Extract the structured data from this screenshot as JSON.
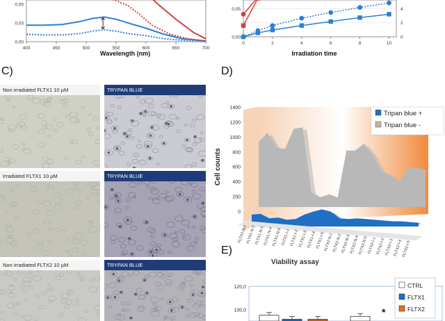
{
  "panels": {
    "c_letter": "C)",
    "d_letter": "D)",
    "e_letter": "E)"
  },
  "chart_a": {
    "type": "line",
    "xlabel": "Wavelength (nm)",
    "xticks": [
      "400",
      "450",
      "500",
      "550",
      "600",
      "650",
      "700"
    ],
    "yticks": [
      "0,00",
      "0,03",
      "0,05"
    ],
    "xlim": [
      400,
      700
    ],
    "ylim": [
      0,
      0.065
    ],
    "series": [
      {
        "style": "solid",
        "color": "#2a7fd4",
        "x": [
          400,
          430,
          460,
          490,
          510,
          530,
          550,
          570,
          600,
          630,
          660,
          700
        ],
        "values": [
          0.022,
          0.022,
          0.023,
          0.027,
          0.031,
          0.033,
          0.03,
          0.025,
          0.018,
          0.01,
          0.004,
          0.001
        ]
      },
      {
        "style": "dotted",
        "color": "#2a7fd4",
        "x": [
          400,
          430,
          460,
          490,
          510,
          530,
          550,
          570,
          600,
          630,
          660,
          700
        ],
        "values": [
          0.01,
          0.009,
          0.009,
          0.011,
          0.014,
          0.016,
          0.014,
          0.011,
          0.008,
          0.004,
          0.002,
          0.0
        ]
      },
      {
        "style": "solid",
        "color": "#d04040",
        "x": [
          420,
          440,
          460,
          475,
          490
        ],
        "values": [
          0.064,
          0.057,
          0.057,
          0.06,
          0.065
        ]
      },
      {
        "style": "dotted",
        "color": "#d04040",
        "x": [
          480,
          510,
          530,
          550,
          570,
          590,
          610,
          640,
          670,
          700
        ],
        "values": [
          0.065,
          0.062,
          0.059,
          0.055,
          0.048,
          0.036,
          0.022,
          0.01,
          0.004,
          0.001
        ]
      },
      {
        "style": "solid",
        "color": "#d04040",
        "x": [
          600,
          620,
          650,
          680,
          700
        ],
        "values": [
          0.065,
          0.05,
          0.03,
          0.012,
          0.004
        ]
      }
    ]
  },
  "chart_b": {
    "type": "line",
    "xlabel": "Irradiation time",
    "xticks": [
      "0",
      "2",
      "4",
      "6",
      "8",
      "10"
    ],
    "yticks_left": [
      "0,00",
      "0,05"
    ],
    "yticks_right": [
      "0",
      "2",
      "4"
    ],
    "xlim": [
      0,
      10.5
    ],
    "series": [
      {
        "style": "solid",
        "color": "#2a7fd4",
        "marker": "square",
        "x": [
          0,
          1,
          2,
          4,
          6,
          8,
          10
        ],
        "values": [
          0.0,
          0.007,
          0.012,
          0.02,
          0.027,
          0.034,
          0.04
        ]
      },
      {
        "style": "dotted",
        "color": "#2a7fd4",
        "marker": "circle",
        "x": [
          0,
          1,
          2,
          4,
          6,
          8,
          10
        ],
        "values": [
          0.0,
          0.011,
          0.02,
          0.033,
          0.043,
          0.052,
          0.06
        ]
      },
      {
        "style": "solid",
        "color": "#d04040",
        "marker": "square",
        "x": [
          0,
          1
        ],
        "values": [
          0.02,
          0.068
        ]
      },
      {
        "style": "solid",
        "color": "#d04040",
        "marker": "circle",
        "x": [
          0,
          1
        ],
        "values": [
          0.04,
          0.07
        ]
      }
    ]
  },
  "photos": [
    {
      "label": "Non irradiated FLTX1 10 µM",
      "label_style": "light",
      "tone": "#cfd1c6"
    },
    {
      "label": "TRYPAN BLUE",
      "label_style": "dark",
      "tone": "#cbccd2"
    },
    {
      "label": "Irradiated FLTX1 10 µM",
      "label_style": "light",
      "tone": "#c4c5b8"
    },
    {
      "label": "TRYPAN BLUE",
      "label_style": "dark",
      "tone": "#a6a4b4"
    },
    {
      "label": "Non irradiated FLTX2 10 µM",
      "label_style": "light",
      "tone": "#c9cac6"
    },
    {
      "label": "TRYPAN BLUE",
      "label_style": "dark",
      "tone": "#b3b3b8"
    }
  ],
  "chart_d": {
    "type": "area",
    "ylabel": "Cell counts",
    "xlabel": "Viability assay",
    "yticks": [
      "0",
      "200",
      "400",
      "600",
      "800",
      "1000",
      "1200",
      "1400"
    ],
    "ylim": [
      0,
      1400
    ],
    "categories": [
      "FLTX1-N-1",
      "FLTX1-N-2",
      "FLTX1-N-3",
      "FLTX1-N-4",
      "FLTX1-N-5",
      "FLTX1-I-1",
      "FLTX1-I-2",
      "FLTX1-I-3",
      "FLTX1-I-4",
      "FLTX1-I-5",
      "FLTX2-N-1",
      "FLTX2-N-2",
      "FLTX2-N-3",
      "FLTX2-N-4",
      "FLTX2-N-5",
      "FLTX2-I-1",
      "FLTX2-I-2",
      "FLTX2-I-3",
      "FLTX2-I-4",
      "FLTX2-I-5"
    ],
    "series": [
      {
        "name": "Tripan blue +",
        "color": "#1f6fc4",
        "values": [
          160,
          170,
          110,
          120,
          90,
          100,
          160,
          200,
          230,
          200,
          110,
          100,
          110,
          100,
          90,
          80,
          70,
          70,
          60,
          50
        ]
      },
      {
        "name": "Tripan blue -",
        "color": "#b8b8b8",
        "values": [
          870,
          1000,
          800,
          780,
          1050,
          1070,
          200,
          130,
          170,
          130,
          760,
          760,
          850,
          700,
          480,
          430,
          340,
          520,
          530,
          500
        ]
      }
    ],
    "legend_position": "top-right"
  },
  "chart_e": {
    "type": "bar",
    "yticks": [
      "100,0",
      "120,0"
    ],
    "ylim_visible": [
      88,
      125
    ],
    "series": [
      {
        "name": "CTRL",
        "color": "#ffffff",
        "values": [
          95.0,
          94.0
        ]
      },
      {
        "name": "FLTX1",
        "color": "#1f6fc4",
        "values": [
          91.5
        ]
      },
      {
        "name": "FLTX2",
        "color": "#e07020",
        "values": [
          91.5
        ]
      }
    ],
    "annotation": "*",
    "legend_position": "top-right"
  }
}
